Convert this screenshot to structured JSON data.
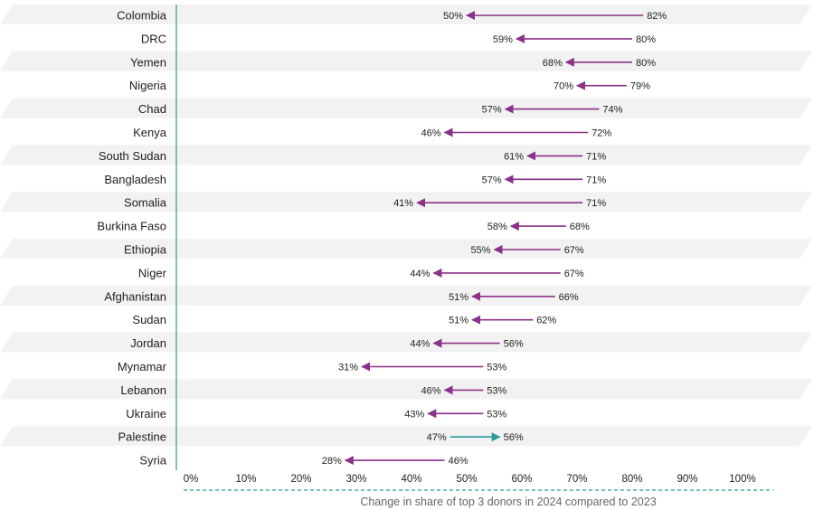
{
  "chart_data": {
    "type": "arrow-dumbbell",
    "xlabel": "Change in share of top 3 donors in 2024 compared to 2023",
    "xlim": [
      0,
      100
    ],
    "x_ticks": [
      0,
      10,
      20,
      30,
      40,
      50,
      60,
      70,
      80,
      90,
      100
    ],
    "x_tick_labels": [
      "0%",
      "10%",
      "20%",
      "30%",
      "40%",
      "50%",
      "60%",
      "70%",
      "80%",
      "90%",
      "100%"
    ],
    "categories": [
      "Colombia",
      "DRC",
      "Yemen",
      "Nigeria",
      "Chad",
      "Kenya",
      "South Sudan",
      "Bangladesh",
      "Somalia",
      "Burkina Faso",
      "Ethiopia",
      "Niger",
      "Afghanistan",
      "Sudan",
      "Jordan",
      "Mynamar",
      "Lebanon",
      "Ukraine",
      "Palestine",
      "Syria"
    ],
    "value_2023": [
      82,
      80,
      80,
      79,
      74,
      72,
      71,
      71,
      71,
      68,
      67,
      67,
      66,
      62,
      56,
      53,
      53,
      53,
      47,
      46
    ],
    "value_2024": [
      50,
      59,
      68,
      70,
      57,
      46,
      61,
      57,
      41,
      58,
      55,
      44,
      51,
      51,
      44,
      31,
      46,
      43,
      56,
      28
    ],
    "label_2023": [
      "82%",
      "80%",
      "80%",
      "79%",
      "74%",
      "72%",
      "71%",
      "71%",
      "71%",
      "68%",
      "67%",
      "67%",
      "66%",
      "62%",
      "56%",
      "53%",
      "53%",
      "53%",
      "47%",
      "46%"
    ],
    "label_2024": [
      "50%",
      "59%",
      "68%",
      "70%",
      "57%",
      "46%",
      "61%",
      "57%",
      "41%",
      "58%",
      "55%",
      "44%",
      "51%",
      "51%",
      "44%",
      "31%",
      "46%",
      "43%",
      "56%",
      "28%"
    ],
    "colors": {
      "decrease": "#8a3287",
      "increase": "#2a9d99",
      "band": "#f2f2f2",
      "axis_line": "#2a9d99",
      "text": "#1f1f1f",
      "title_text": "#666666"
    }
  }
}
